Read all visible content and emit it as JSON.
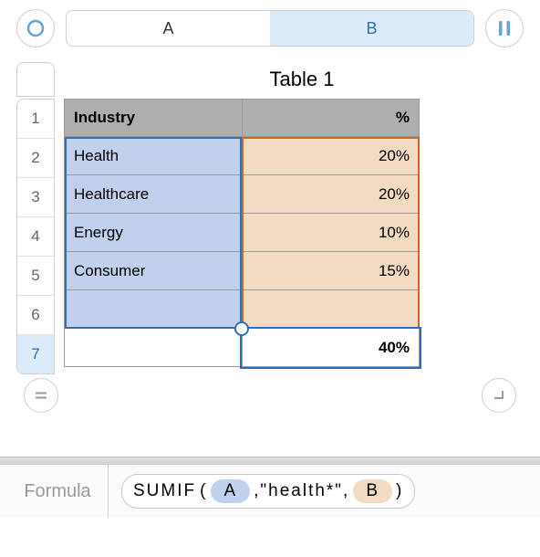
{
  "top": {
    "colA": "A",
    "colB": "B",
    "active_col": "B"
  },
  "icons": {
    "ring_color": "#5fa3e0",
    "pause_color": "#5fa3e0",
    "equals_color": "#9a9a9a",
    "enter_color": "#9a9a9a"
  },
  "row_headers": [
    "1",
    "2",
    "3",
    "4",
    "5",
    "6",
    "7"
  ],
  "selected_row": "7",
  "table": {
    "title": "Table 1",
    "columns": [
      "Industry",
      "%"
    ],
    "rows": [
      {
        "industry": "Health",
        "pct": "20%"
      },
      {
        "industry": "Healthcare",
        "pct": "20%"
      },
      {
        "industry": "Energy",
        "pct": "10%"
      },
      {
        "industry": "Consumer",
        "pct": "15%"
      },
      {
        "industry": "",
        "pct": ""
      }
    ],
    "result": "40%",
    "colA_bg": "#c1d0ec",
    "colB_bg": "#f2dbc3",
    "header_bg": "#aeaeae",
    "colA_border": "#2f6fb2",
    "colB_border": "#c66a2e"
  },
  "formula": {
    "label": "Formula",
    "fn": "SUMIF",
    "arg1": "A",
    "literal": ",\"health*\",",
    "arg3": "B"
  },
  "selection": {
    "result_cell_border": "#2f6fb2"
  }
}
